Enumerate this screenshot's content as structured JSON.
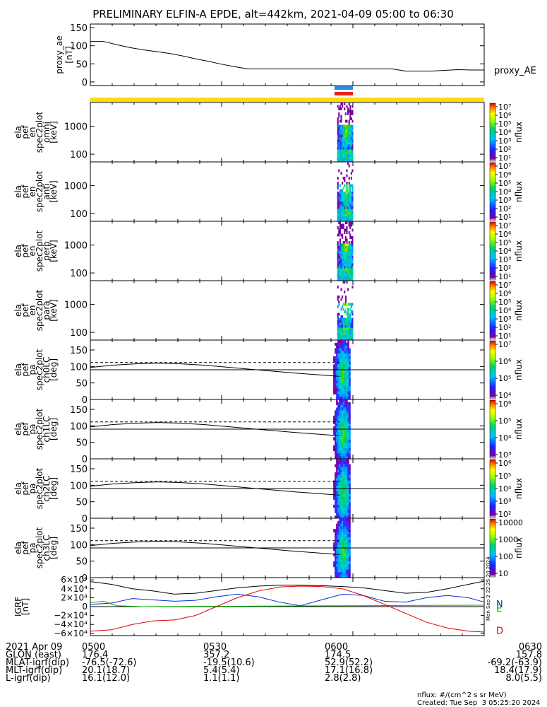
{
  "title": "PRELIMINARY ELFIN-A EPDE, alt=442km, 2021-04-09 05:00 to 06:30",
  "colors": {
    "blue_bar": "#2a8be8",
    "red_bar": "#e8201a",
    "yellow_bar": "#ffdd00",
    "green": "#00b000",
    "red": "#e00000",
    "blue": "#0030d0"
  },
  "chart_data": [
    {
      "id": "ae",
      "type": "line",
      "ylabel": [
        "proxy_ae",
        "[nT]"
      ],
      "legend": "proxy_AE",
      "yticks": [
        "150",
        "100",
        "50",
        "0"
      ],
      "ylim": [
        -10,
        160
      ],
      "x": [
        5.0,
        5.05,
        5.1,
        5.15,
        5.2,
        5.25,
        5.3,
        5.35,
        5.4,
        5.45,
        5.5,
        5.55,
        5.6,
        5.65,
        5.7,
        5.75,
        5.8,
        5.85,
        5.9,
        5.95,
        6.0,
        6.05,
        6.1,
        6.15,
        6.2,
        6.25,
        6.3,
        6.35,
        6.4,
        6.45,
        6.5
      ],
      "values": [
        112,
        112,
        103,
        95,
        89,
        84,
        79,
        72,
        64,
        57,
        49,
        42,
        36,
        36,
        36,
        36,
        36,
        36,
        36,
        36,
        36,
        36,
        36,
        36,
        30,
        30,
        30,
        32,
        34,
        33,
        33
      ]
    },
    {
      "id": "omni",
      "type": "heatmap",
      "ylabel": [
        "ela",
        "pef",
        "en",
        "spec2plot",
        "omni",
        "[keV]"
      ],
      "yticks": [
        "1000",
        "100"
      ],
      "cbar_ticks": [
        "10⁷",
        "10⁶",
        "10⁵",
        "10⁴",
        "10³",
        "10²",
        "10¹"
      ],
      "cbar_label": "nflux",
      "event_x": [
        5.93,
        6.0
      ]
    },
    {
      "id": "anti",
      "type": "heatmap",
      "ylabel": [
        "ela",
        "pef",
        "en",
        "spec2plot",
        "anti",
        "[keV]"
      ],
      "yticks": [
        "1000",
        "100"
      ],
      "cbar_ticks": [
        "10⁷",
        "10⁶",
        "10⁵",
        "10⁴",
        "10³",
        "10²",
        "10¹"
      ],
      "cbar_label": "nflux",
      "event_x": [
        5.93,
        6.0
      ]
    },
    {
      "id": "perp",
      "type": "heatmap",
      "ylabel": [
        "ela",
        "pef",
        "en",
        "spec2plot",
        "perp",
        "[keV]"
      ],
      "yticks": [
        "1000",
        "100"
      ],
      "cbar_ticks": [
        "10⁷",
        "10⁶",
        "10⁵",
        "10⁴",
        "10³",
        "10²",
        "10¹"
      ],
      "cbar_label": "nflux",
      "event_x": [
        5.93,
        6.0
      ]
    },
    {
      "id": "para",
      "type": "heatmap",
      "ylabel": [
        "ela",
        "pef",
        "en",
        "spec2plot",
        "para",
        "[keV]"
      ],
      "yticks": [
        "1000",
        "100"
      ],
      "cbar_ticks": [
        "10⁷",
        "10⁶",
        "10⁵",
        "10⁴",
        "10³",
        "10²",
        "10¹"
      ],
      "cbar_label": "nflux",
      "event_x": [
        5.93,
        6.0
      ]
    },
    {
      "id": "ch0",
      "type": "heatmap",
      "ylabel": [
        "ela",
        "pef",
        "pa",
        "spec2plot",
        "ch0LC",
        "[deg]"
      ],
      "yticks": [
        "150",
        "100",
        "50",
        "0"
      ],
      "ylim": [
        0,
        180
      ],
      "cbar_ticks": [
        "10⁷",
        "10⁶",
        "10⁵",
        "10⁴"
      ],
      "cbar_label": "nflux",
      "lc_line": [
        97,
        104,
        108,
        110,
        108,
        104,
        98,
        92,
        86,
        80,
        75,
        70
      ],
      "lc_dash": 112,
      "lc_flat": 90
    },
    {
      "id": "ch1",
      "type": "heatmap",
      "ylabel": [
        "ela",
        "pef",
        "pa",
        "spec2plot",
        "ch1LC",
        "[deg]"
      ],
      "yticks": [
        "150",
        "100",
        "50",
        "0"
      ],
      "ylim": [
        0,
        180
      ],
      "cbar_ticks": [
        "10⁶",
        "10⁵",
        "10⁴",
        "10³"
      ],
      "cbar_label": "nflux",
      "lc_line": [
        97,
        104,
        108,
        110,
        108,
        104,
        98,
        92,
        86,
        80,
        75,
        70
      ],
      "lc_dash": 112,
      "lc_flat": 90
    },
    {
      "id": "ch2",
      "type": "heatmap",
      "ylabel": [
        "ela",
        "pef",
        "pa",
        "spec2plot",
        "ch2LC",
        "[deg]"
      ],
      "yticks": [
        "150",
        "100",
        "50",
        "0"
      ],
      "ylim": [
        0,
        180
      ],
      "cbar_ticks": [
        "10⁶",
        "10⁵",
        "10⁴",
        "10³",
        "10²"
      ],
      "cbar_label": "nflux",
      "lc_line": [
        97,
        104,
        108,
        110,
        108,
        104,
        98,
        92,
        86,
        80,
        75,
        70
      ],
      "lc_dash": 112,
      "lc_flat": 90
    },
    {
      "id": "ch3",
      "type": "heatmap",
      "ylabel": [
        "ela",
        "pef",
        "pa",
        "spec2plot",
        "ch3LC",
        "[deg]"
      ],
      "yticks": [
        "150",
        "100",
        "50",
        "0"
      ],
      "ylim": [
        0,
        180
      ],
      "cbar_ticks": [
        "10000",
        "1000",
        "100",
        "10"
      ],
      "cbar_label": "nflux",
      "lc_line": [
        97,
        104,
        108,
        110,
        108,
        104,
        98,
        92,
        86,
        80,
        75,
        70
      ],
      "lc_dash": 112,
      "lc_flat": 90
    },
    {
      "id": "igrf",
      "type": "line",
      "ylabel": [
        "IGRF",
        "[nT]"
      ],
      "yticks": [
        "6×10⁴",
        "4×10⁴",
        "2×10⁴",
        "0",
        "−2×10⁴",
        "−4×10⁴",
        "−6×10⁴"
      ],
      "ylim": [
        -65000,
        65000
      ],
      "series": [
        {
          "name": "N",
          "color": "#0030d0",
          "x": [
            5.0,
            5.08,
            5.16,
            5.24,
            5.32,
            5.4,
            5.48,
            5.56,
            5.64,
            5.72,
            5.8,
            5.88,
            5.96,
            6.04,
            6.12,
            6.2,
            6.28,
            6.36,
            6.44,
            6.5
          ],
          "values": [
            5000,
            8000,
            18000,
            15000,
            12000,
            14000,
            22000,
            28000,
            22000,
            10000,
            2000,
            15000,
            28000,
            25000,
            12000,
            10000,
            20000,
            25000,
            20000,
            10000
          ]
        },
        {
          "name": "E",
          "color": "#00b000",
          "x": [
            5.0,
            5.05,
            5.1,
            5.2,
            5.4,
            5.6,
            5.8,
            6.0,
            6.2,
            6.4,
            6.5
          ],
          "values": [
            9000,
            12000,
            2000,
            0,
            500,
            1000,
            1500,
            2000,
            2500,
            3000,
            3200
          ]
        },
        {
          "name": "D",
          "color": "#e00000",
          "x": [
            5.0,
            5.08,
            5.16,
            5.24,
            5.32,
            5.4,
            5.48,
            5.56,
            5.64,
            5.72,
            5.8,
            5.88,
            5.96,
            6.04,
            6.12,
            6.2,
            6.28,
            6.36,
            6.44,
            6.5
          ],
          "values": [
            -55000,
            -52000,
            -40000,
            -32000,
            -30000,
            -20000,
            0,
            20000,
            35000,
            44000,
            46000,
            45000,
            40000,
            25000,
            5000,
            -15000,
            -35000,
            -48000,
            -55000,
            -57000
          ]
        },
        {
          "name": "F",
          "color": "#000000",
          "x": [
            5.0,
            5.08,
            5.16,
            5.24,
            5.32,
            5.4,
            5.48,
            5.56,
            5.64,
            5.72,
            5.8,
            5.88,
            5.96,
            6.04,
            6.12,
            6.2,
            6.28,
            6.36,
            6.44,
            6.5
          ],
          "values": [
            56000,
            50000,
            40000,
            35000,
            28000,
            30000,
            36000,
            42000,
            46000,
            48000,
            48000,
            47000,
            45000,
            42000,
            36000,
            30000,
            32000,
            40000,
            50000,
            57000
          ]
        }
      ],
      "side_labels": [
        "N",
        "E",
        "D"
      ]
    }
  ],
  "stamp": "Mon Sep  2 22:25:20 2024",
  "footer": {
    "rows": [
      {
        "label": "2021 Apr 09",
        "vals": [
          "0500",
          "0530",
          "0600",
          "0630"
        ]
      },
      {
        "label": "GLON (east)",
        "vals": [
          "176.4",
          "357.2",
          "174.5",
          "157.8"
        ]
      },
      {
        "label": "MLAT-igrf(dip)",
        "vals": [
          "-76.5(-72.6)",
          "-19.5(10.6)",
          "52.9(52.2)",
          "-69.2(-63.9)"
        ]
      },
      {
        "label": "MLT-igrf(dip)",
        "vals": [
          "20.1(18.7)",
          "5.4(5.4)",
          "17.1(16.8)",
          "18.4(17.9)"
        ]
      },
      {
        "label": "L-igrf(dip)",
        "vals": [
          "16.1(12.0)",
          "1.1(1.1)",
          "2.8(2.8)",
          "8.0(5.5)"
        ]
      }
    ],
    "units": "nflux: #/(cm^2 s sr MeV)",
    "created": "Created: Tue Sep  3 05:25:20 2024"
  }
}
